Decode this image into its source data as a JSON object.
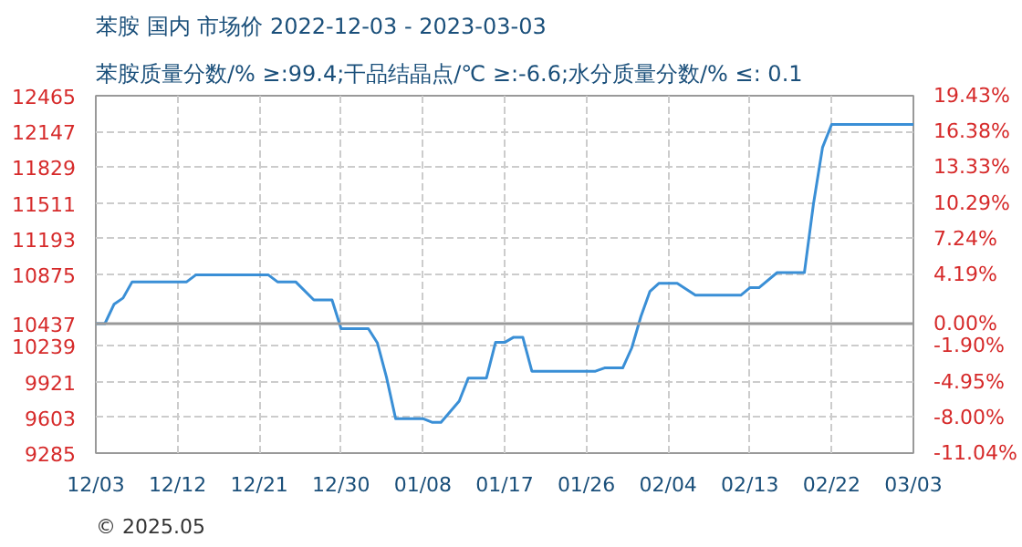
{
  "chart_data": {
    "type": "line",
    "title": "苯胺 国内 市场价 2022-12-03 - 2023-03-03",
    "subtitle": "苯胺质量分数/% ≥:99.4;干品结晶点/℃  ≥:-6.6;水分质量分数/%  ≤: 0.1",
    "x": [
      "2022-12-03",
      "2022-12-04",
      "2022-12-05",
      "2022-12-06",
      "2022-12-07",
      "2022-12-13",
      "2022-12-14",
      "2022-12-22",
      "2022-12-23",
      "2022-12-25",
      "2022-12-27",
      "2022-12-29",
      "2022-12-30",
      "2023-01-02",
      "2023-01-03",
      "2023-01-04",
      "2023-01-05",
      "2023-01-08",
      "2023-01-09",
      "2023-01-10",
      "2023-01-12",
      "2023-01-13",
      "2023-01-15",
      "2023-01-16",
      "2023-01-17",
      "2023-01-18",
      "2023-01-19",
      "2023-01-20",
      "2023-01-27",
      "2023-01-28",
      "2023-01-30",
      "2023-01-31",
      "2023-02-01",
      "2023-02-02",
      "2023-02-03",
      "2023-02-05",
      "2023-02-07",
      "2023-02-12",
      "2023-02-13",
      "2023-02-14",
      "2023-02-16",
      "2023-02-19",
      "2023-02-20",
      "2023-02-21",
      "2023-02-22",
      "2023-03-03"
    ],
    "series": [
      {
        "color": "#3a8fd6",
        "values": [
          10437,
          10437,
          10609,
          10665,
          10809,
          10809,
          10870,
          10870,
          10809,
          10809,
          10648,
          10648,
          10392,
          10392,
          10264,
          9959,
          9592,
          9592,
          9559,
          9559,
          9748,
          9953,
          9953,
          10270,
          10270,
          10316,
          10316,
          10014,
          10014,
          10043,
          10043,
          10222,
          10500,
          10724,
          10796,
          10796,
          10690,
          10690,
          10757,
          10757,
          10891,
          10891,
          11504,
          12006,
          12210,
          12210
        ]
      }
    ],
    "xlim": [
      "2022-12-03",
      "2023-03-03"
    ],
    "xticks": [
      {
        "value": "2022-12-03",
        "label": "12/03"
      },
      {
        "value": "2022-12-12",
        "label": "12/12"
      },
      {
        "value": "2022-12-21",
        "label": "12/21"
      },
      {
        "value": "2022-12-30",
        "label": "12/30"
      },
      {
        "value": "2023-01-08",
        "label": "01/08"
      },
      {
        "value": "2023-01-17",
        "label": "01/17"
      },
      {
        "value": "2023-01-26",
        "label": "01/26"
      },
      {
        "value": "2023-02-04",
        "label": "02/04"
      },
      {
        "value": "2023-02-13",
        "label": "02/13"
      },
      {
        "value": "2023-02-22",
        "label": "02/22"
      },
      {
        "value": "2023-03-03",
        "label": "03/03"
      }
    ],
    "ylim": [
      9285,
      12465
    ],
    "yticks": [
      9285,
      9603,
      9921,
      10239,
      10437,
      10875,
      11193,
      11511,
      11829,
      12147,
      12465
    ],
    "y2lim": [
      -11.04,
      19.43
    ],
    "y2ticks": [
      {
        "value": -11.04,
        "label": "-11.04%"
      },
      {
        "value": -8.0,
        "label": "-8.00%"
      },
      {
        "value": -4.95,
        "label": "-4.95%"
      },
      {
        "value": -1.9,
        "label": "-1.90%"
      },
      {
        "value": 0,
        "label": "0.00%"
      },
      {
        "value": 4.19,
        "label": "4.19%"
      },
      {
        "value": 7.24,
        "label": "7.24%"
      },
      {
        "value": 10.29,
        "label": "10.29%"
      },
      {
        "value": 13.33,
        "label": "13.33%"
      },
      {
        "value": 16.38,
        "label": "16.38%"
      },
      {
        "value": 19.43,
        "label": "19.43%"
      }
    ],
    "ref_lines": [
      {
        "axis": "y",
        "value": 10437,
        "color": "#999999"
      }
    ],
    "grid": true,
    "annotations": [
      "© 2025.05"
    ]
  }
}
